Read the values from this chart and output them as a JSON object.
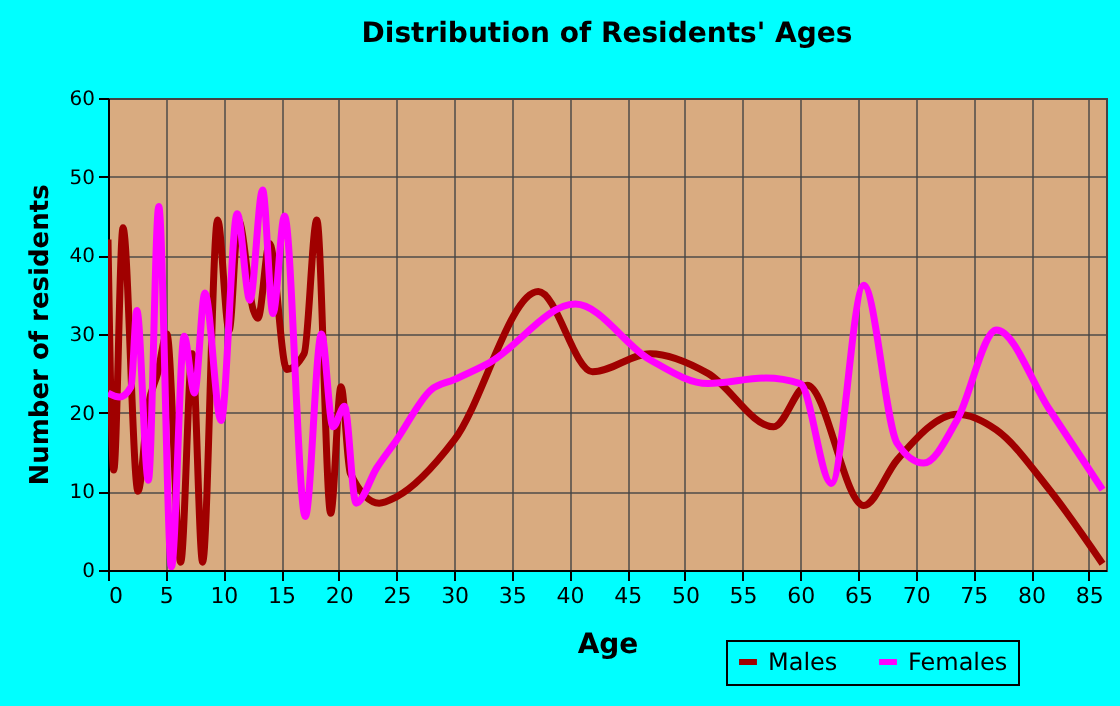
{
  "chart_data": {
    "type": "line",
    "title": "Distribution of Residents' Ages",
    "xlabel": "Age",
    "ylabel": "Number of residents",
    "xlim": [
      0,
      86.5
    ],
    "xticks": [
      0,
      5,
      10,
      15,
      20,
      25,
      30,
      35,
      40,
      45,
      50,
      55,
      60,
      65,
      70,
      75,
      80,
      85
    ],
    "ylim": [
      0,
      60
    ],
    "yticks": [
      0,
      10,
      20,
      30,
      40,
      50,
      60
    ],
    "grid": true,
    "legend": "bottom right",
    "series": [
      {
        "name": "Males",
        "color": "#a00000",
        "x": [
          0,
          0.5,
          1.3,
          2.6,
          3.5,
          4.3,
          5.1,
          6.3,
          7.3,
          8.2,
          9.5,
          10.5,
          11.3,
          12.6,
          13,
          14,
          15.5,
          17,
          18.1,
          19.3,
          20.2,
          21,
          23.5,
          25,
          30,
          37.3,
          42,
          47,
          52,
          57.7,
          60.6,
          65.5,
          68.4,
          73.6,
          77,
          81.6,
          86.2
        ],
        "values": [
          42,
          12.7,
          43.5,
          10,
          21,
          25,
          30,
          1,
          27.5,
          1,
          44.5,
          30.5,
          44.5,
          33,
          32,
          41.5,
          25.5,
          27.5,
          44.5,
          7.2,
          23.3,
          12.3,
          8.5,
          9.3,
          16.5,
          35.4,
          25.2,
          27.5,
          25,
          18.2,
          23.5,
          8.2,
          14,
          19.8,
          17.8,
          10.2,
          0.8
        ]
      },
      {
        "name": "Females",
        "color": "#ff00ff",
        "x": [
          0,
          1,
          2,
          2.5,
          3.5,
          4.4,
          5.5,
          6.6,
          7.5,
          8.4,
          9.8,
          11.2,
          12.3,
          13.4,
          14.3,
          15.3,
          17.1,
          18.5,
          19.5,
          20.5,
          21.5,
          23.3,
          25,
          28,
          30,
          33,
          40.5,
          47,
          52,
          57,
          60,
          62.7,
          65.5,
          68.4,
          70.7,
          73.6,
          77,
          81.6,
          86.2
        ],
        "values": [
          22.5,
          22,
          23.3,
          33,
          11.4,
          46.2,
          0.4,
          29.7,
          22.5,
          35.2,
          19,
          45.3,
          34.3,
          48.3,
          32.6,
          45,
          6.8,
          30,
          18.2,
          20.8,
          8.5,
          13,
          16.5,
          22.9,
          24.2,
          26.3,
          33.8,
          26.7,
          23.7,
          24.4,
          23.7,
          11,
          36.2,
          16.1,
          13.6,
          19.1,
          30.5,
          20.4,
          10.2
        ]
      }
    ]
  }
}
